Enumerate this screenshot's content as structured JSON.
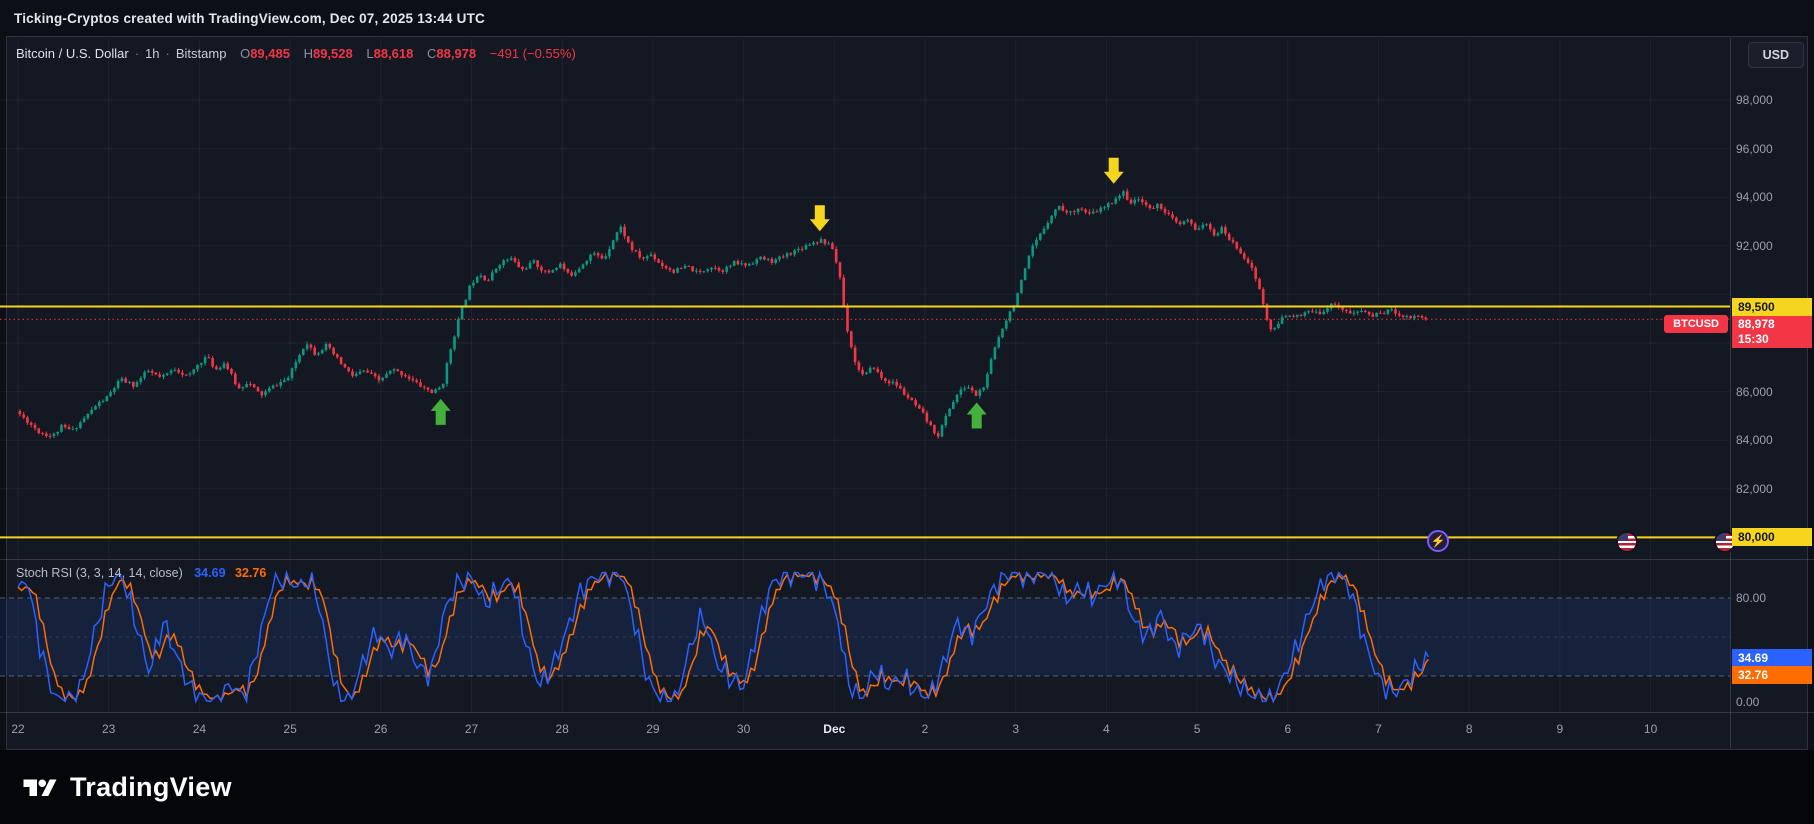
{
  "topbar": {
    "text": "Ticking-Cryptos created with TradingView.com, Dec 07, 2025 13:44 UTC"
  },
  "symbol_line": {
    "title": "Bitcoin / U.S. Dollar",
    "separator": "·",
    "timeframe": "1h",
    "exchange": "Bitstamp",
    "o_label": "O",
    "o_value": "89,485",
    "h_label": "H",
    "h_value": "89,528",
    "l_label": "L",
    "l_value": "88,618",
    "c_label": "C",
    "c_value": "88,978",
    "change": "−491 (−0.55%)"
  },
  "indicator": {
    "title": "Stoch RSI (3, 3, 14, 14, close)",
    "k_value": "34.69",
    "d_value": "32.76"
  },
  "price_scale": {
    "currency": "USD",
    "ticks": [
      {
        "value": 98000,
        "label": "98,000"
      },
      {
        "value": 96000,
        "label": "96,000"
      },
      {
        "value": 94000,
        "label": "94,000"
      },
      {
        "value": 92000,
        "label": "92,000"
      },
      {
        "value": 86000,
        "label": "86,000"
      },
      {
        "value": 84000,
        "label": "84,000"
      },
      {
        "value": 82000,
        "label": "82,000"
      }
    ],
    "gridline_values": [
      98000,
      96000,
      94000,
      92000,
      90000,
      88000,
      86000,
      84000,
      82000,
      80000
    ],
    "upper_level_label": "89,500",
    "lower_level_label": "80,000",
    "last_label": "88,978",
    "countdown": "15:30",
    "symbol_tag": "BTCUSD",
    "rsi_upper_label": "80.00",
    "rsi_zero_label": "0.00"
  },
  "time_axis": {
    "labels": [
      {
        "text": "22",
        "day": 0
      },
      {
        "text": "23",
        "day": 1
      },
      {
        "text": "24",
        "day": 2
      },
      {
        "text": "25",
        "day": 3
      },
      {
        "text": "26",
        "day": 4
      },
      {
        "text": "27",
        "day": 5
      },
      {
        "text": "28",
        "day": 6
      },
      {
        "text": "29",
        "day": 7
      },
      {
        "text": "30",
        "day": 8
      },
      {
        "text": "Dec",
        "day": 9,
        "em": true
      },
      {
        "text": "2",
        "day": 10
      },
      {
        "text": "3",
        "day": 11
      },
      {
        "text": "4",
        "day": 12
      },
      {
        "text": "5",
        "day": 13
      },
      {
        "text": "6",
        "day": 14
      },
      {
        "text": "7",
        "day": 15
      },
      {
        "text": "8",
        "day": 16
      },
      {
        "text": "9",
        "day": 17
      },
      {
        "text": "10",
        "day": 18
      }
    ]
  },
  "colors": {
    "up": "#089981",
    "down": "#f23645",
    "grid": "rgba(240,243,250,0.055)",
    "level_yellow": "#f6d51e",
    "arrow_green": "#44b13c",
    "arrow_yellow": "#f6d51e",
    "k_line": "#2962ff",
    "d_line": "#ff6d00",
    "band_fill": "rgba(41,98,255,0.12)",
    "band_line": "rgba(170,178,192,0.45)",
    "last_price": "#f23645"
  },
  "footer": {
    "brand": "TradingView"
  },
  "chart_data": {
    "type": "candlestick",
    "symbol": "BTCUSD",
    "timeframe": "1h",
    "exchange": "Bitstamp",
    "title": "Bitcoin / U.S. Dollar",
    "y_axis": {
      "visible_range": [
        79100,
        100500
      ],
      "gridline_step": 2000
    },
    "x_axis_days": [
      "Nov 22",
      "Nov 23",
      "Nov 24",
      "Nov 25",
      "Nov 26",
      "Nov 27",
      "Nov 28",
      "Nov 29",
      "Nov 30",
      "Dec 1",
      "Dec 2",
      "Dec 3",
      "Dec 4",
      "Dec 5",
      "Dec 6",
      "Dec 7",
      "Dec 8",
      "Dec 9",
      "Dec 10"
    ],
    "ohlc_last": {
      "open": 89485,
      "high": 89528,
      "low": 88618,
      "close": 88978,
      "change": -491,
      "change_pct": -0.55
    },
    "levels": [
      {
        "price": 89500,
        "label": "89,500"
      },
      {
        "price": 80000,
        "label": "80,000"
      }
    ],
    "markers": [
      {
        "shape": "arrow-up",
        "day": 4.66,
        "price": 85700,
        "color_key": "arrow_green"
      },
      {
        "shape": "arrow-down",
        "day": 8.84,
        "price": 92600,
        "color_key": "arrow_yellow"
      },
      {
        "shape": "arrow-up",
        "day": 10.57,
        "price": 85550,
        "color_key": "arrow_green"
      },
      {
        "shape": "arrow-down",
        "day": 12.08,
        "price": 94550,
        "color_key": "arrow_yellow"
      }
    ],
    "price_waypoints": [
      [
        0,
        85200
      ],
      [
        0.12,
        84800
      ],
      [
        0.25,
        84350
      ],
      [
        0.4,
        84150
      ],
      [
        0.5,
        84550
      ],
      [
        0.62,
        84400
      ],
      [
        0.75,
        84900
      ],
      [
        0.9,
        85500
      ],
      [
        1.0,
        85750
      ],
      [
        1.15,
        86500
      ],
      [
        1.3,
        86250
      ],
      [
        1.45,
        86850
      ],
      [
        1.6,
        86550
      ],
      [
        1.75,
        86950
      ],
      [
        1.9,
        86600
      ],
      [
        2.0,
        87100
      ],
      [
        2.1,
        87450
      ],
      [
        2.2,
        86900
      ],
      [
        2.3,
        87200
      ],
      [
        2.45,
        86100
      ],
      [
        2.55,
        86400
      ],
      [
        2.7,
        85850
      ],
      [
        2.85,
        86250
      ],
      [
        3.0,
        86550
      ],
      [
        3.1,
        87350
      ],
      [
        3.2,
        88050
      ],
      [
        3.3,
        87550
      ],
      [
        3.42,
        87900
      ],
      [
        3.55,
        87300
      ],
      [
        3.7,
        86650
      ],
      [
        3.85,
        86850
      ],
      [
        4.0,
        86450
      ],
      [
        4.15,
        86900
      ],
      [
        4.3,
        86650
      ],
      [
        4.45,
        86250
      ],
      [
        4.6,
        85950
      ],
      [
        4.7,
        86250
      ],
      [
        4.78,
        87600
      ],
      [
        4.88,
        89000
      ],
      [
        5.0,
        90300
      ],
      [
        5.1,
        90900
      ],
      [
        5.2,
        90550
      ],
      [
        5.32,
        91250
      ],
      [
        5.45,
        91500
      ],
      [
        5.58,
        91000
      ],
      [
        5.7,
        91350
      ],
      [
        5.85,
        90850
      ],
      [
        6.0,
        91250
      ],
      [
        6.1,
        90750
      ],
      [
        6.22,
        91150
      ],
      [
        6.35,
        91700
      ],
      [
        6.48,
        91450
      ],
      [
        6.58,
        92250
      ],
      [
        6.66,
        92800
      ],
      [
        6.78,
        91900
      ],
      [
        6.9,
        91450
      ],
      [
        7.0,
        91650
      ],
      [
        7.12,
        91200
      ],
      [
        7.25,
        90950
      ],
      [
        7.4,
        91150
      ],
      [
        7.52,
        90850
      ],
      [
        7.65,
        91150
      ],
      [
        7.8,
        91000
      ],
      [
        7.92,
        91300
      ],
      [
        8.05,
        91200
      ],
      [
        8.2,
        91500
      ],
      [
        8.35,
        91350
      ],
      [
        8.5,
        91650
      ],
      [
        8.62,
        91850
      ],
      [
        8.75,
        92100
      ],
      [
        8.88,
        92250
      ],
      [
        9.0,
        91900
      ],
      [
        9.08,
        90800
      ],
      [
        9.15,
        88800
      ],
      [
        9.25,
        87200
      ],
      [
        9.35,
        86600
      ],
      [
        9.45,
        87050
      ],
      [
        9.55,
        86500
      ],
      [
        9.7,
        86300
      ],
      [
        9.82,
        85800
      ],
      [
        9.92,
        85400
      ],
      [
        10.0,
        85050
      ],
      [
        10.1,
        84450
      ],
      [
        10.17,
        84200
      ],
      [
        10.28,
        85250
      ],
      [
        10.38,
        85900
      ],
      [
        10.48,
        86250
      ],
      [
        10.58,
        85850
      ],
      [
        10.68,
        86250
      ],
      [
        10.78,
        87700
      ],
      [
        10.88,
        88700
      ],
      [
        11.0,
        89600
      ],
      [
        11.1,
        90700
      ],
      [
        11.2,
        91900
      ],
      [
        11.3,
        92500
      ],
      [
        11.4,
        93200
      ],
      [
        11.5,
        93650
      ],
      [
        11.6,
        93300
      ],
      [
        11.72,
        93600
      ],
      [
        11.82,
        93250
      ],
      [
        11.92,
        93450
      ],
      [
        12.02,
        93600
      ],
      [
        12.12,
        93950
      ],
      [
        12.2,
        94200
      ],
      [
        12.3,
        93750
      ],
      [
        12.4,
        93950
      ],
      [
        12.5,
        93500
      ],
      [
        12.6,
        93700
      ],
      [
        12.72,
        93200
      ],
      [
        12.82,
        92850
      ],
      [
        12.92,
        93050
      ],
      [
        13.0,
        92650
      ],
      [
        13.1,
        92950
      ],
      [
        13.2,
        92450
      ],
      [
        13.3,
        92700
      ],
      [
        13.4,
        92150
      ],
      [
        13.5,
        91750
      ],
      [
        13.6,
        91250
      ],
      [
        13.7,
        90350
      ],
      [
        13.78,
        89100
      ],
      [
        13.85,
        88400
      ],
      [
        13.95,
        89000
      ],
      [
        14.05,
        89200
      ],
      [
        14.15,
        89050
      ],
      [
        14.25,
        89300
      ],
      [
        14.35,
        89200
      ],
      [
        14.45,
        89450
      ],
      [
        14.55,
        89650
      ],
      [
        14.65,
        89300
      ],
      [
        14.75,
        89200
      ],
      [
        14.85,
        89350
      ],
      [
        14.95,
        89100
      ],
      [
        15.05,
        89250
      ],
      [
        15.15,
        89350
      ],
      [
        15.25,
        89200
      ],
      [
        15.35,
        89050
      ],
      [
        15.45,
        89150
      ],
      [
        15.55,
        88978
      ]
    ],
    "stoch_rsi": {
      "type": "line",
      "name": "Stoch RSI (3, 3, 14, 14, close)",
      "range": [
        0,
        100
      ],
      "bands": [
        80,
        20
      ],
      "k_last": 34.69,
      "d_last": 32.76,
      "k_waypoints": [
        [
          0,
          85
        ],
        [
          0.1,
          96
        ],
        [
          0.25,
          40
        ],
        [
          0.4,
          4
        ],
        [
          0.55,
          0
        ],
        [
          0.7,
          12
        ],
        [
          0.85,
          55
        ],
        [
          1.0,
          92
        ],
        [
          1.15,
          97
        ],
        [
          1.3,
          60
        ],
        [
          1.45,
          22
        ],
        [
          1.6,
          62
        ],
        [
          1.75,
          35
        ],
        [
          1.9,
          10
        ],
        [
          2.05,
          2
        ],
        [
          2.2,
          0
        ],
        [
          2.35,
          14
        ],
        [
          2.5,
          3
        ],
        [
          2.65,
          45
        ],
        [
          2.8,
          90
        ],
        [
          2.95,
          96
        ],
        [
          3.1,
          88
        ],
        [
          3.25,
          97
        ],
        [
          3.4,
          45
        ],
        [
          3.5,
          8
        ],
        [
          3.65,
          0
        ],
        [
          3.8,
          30
        ],
        [
          3.95,
          55
        ],
        [
          4.1,
          38
        ],
        [
          4.25,
          52
        ],
        [
          4.4,
          28
        ],
        [
          4.55,
          20
        ],
        [
          4.7,
          70
        ],
        [
          4.85,
          92
        ],
        [
          5.0,
          96
        ],
        [
          5.15,
          75
        ],
        [
          5.3,
          88
        ],
        [
          5.45,
          94
        ],
        [
          5.6,
          45
        ],
        [
          5.75,
          12
        ],
        [
          5.9,
          28
        ],
        [
          6.05,
          55
        ],
        [
          6.2,
          85
        ],
        [
          6.35,
          96
        ],
        [
          6.5,
          99
        ],
        [
          6.65,
          100
        ],
        [
          6.8,
          60
        ],
        [
          6.95,
          15
        ],
        [
          7.1,
          2
        ],
        [
          7.25,
          0
        ],
        [
          7.4,
          40
        ],
        [
          7.55,
          68
        ],
        [
          7.7,
          30
        ],
        [
          7.85,
          18
        ],
        [
          8.0,
          12
        ],
        [
          8.15,
          55
        ],
        [
          8.3,
          90
        ],
        [
          8.45,
          98
        ],
        [
          8.6,
          100
        ],
        [
          8.75,
          97
        ],
        [
          8.9,
          90
        ],
        [
          9.05,
          60
        ],
        [
          9.15,
          15
        ],
        [
          9.3,
          2
        ],
        [
          9.45,
          25
        ],
        [
          9.6,
          12
        ],
        [
          9.75,
          20
        ],
        [
          9.9,
          8
        ],
        [
          10.05,
          4
        ],
        [
          10.2,
          28
        ],
        [
          10.35,
          62
        ],
        [
          10.5,
          50
        ],
        [
          10.65,
          72
        ],
        [
          10.8,
          92
        ],
        [
          10.95,
          100
        ],
        [
          11.1,
          96
        ],
        [
          11.25,
          99
        ],
        [
          11.4,
          100
        ],
        [
          11.55,
          78
        ],
        [
          11.7,
          88
        ],
        [
          11.85,
          80
        ],
        [
          12.0,
          92
        ],
        [
          12.15,
          96
        ],
        [
          12.3,
          62
        ],
        [
          12.45,
          50
        ],
        [
          12.6,
          68
        ],
        [
          12.75,
          40
        ],
        [
          12.9,
          52
        ],
        [
          13.05,
          58
        ],
        [
          13.2,
          32
        ],
        [
          13.35,
          22
        ],
        [
          13.5,
          10
        ],
        [
          13.65,
          4
        ],
        [
          13.8,
          0
        ],
        [
          13.95,
          18
        ],
        [
          14.1,
          42
        ],
        [
          14.25,
          72
        ],
        [
          14.4,
          94
        ],
        [
          14.55,
          100
        ],
        [
          14.7,
          85
        ],
        [
          14.85,
          45
        ],
        [
          15.0,
          18
        ],
        [
          15.15,
          6
        ],
        [
          15.3,
          15
        ],
        [
          15.45,
          28
        ],
        [
          15.55,
          34.69
        ]
      ]
    }
  }
}
